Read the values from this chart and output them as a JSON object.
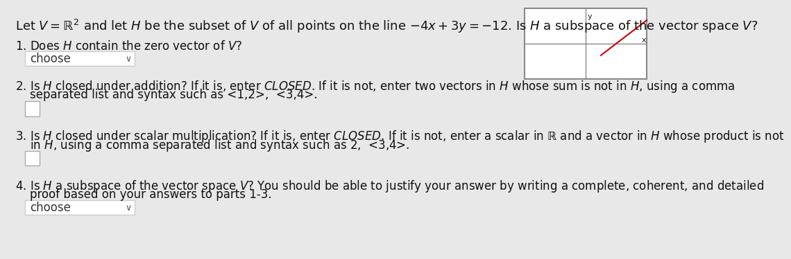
{
  "bg_color": "#e8e8e8",
  "title_text": "Let $V = \\mathbb{R}^2$ and let $H$ be the subset of $V$ of all points on the line $-4x + 3y = -12$. Is $H$ a subspace of the vector space $V$?",
  "q1_label": "1. Does $H$ contain the zero vector of $V$?",
  "q1_box_text": "choose",
  "q2_label_line1": "2. Is $H$ closed under addition? If it is, enter $\\mathit{CLOSED}$. If it is not, enter two vectors in $H$ whose sum is not in $H$, using a comma",
  "q2_label_line2": "    separated list and syntax such as <1,2>,  <3,4>.",
  "q3_label_line1": "3. Is $H$ closed under scalar multiplication? If it is, enter $\\mathit{CLOSED}$. If it is not, enter a scalar in $\\mathbb{R}$ and a vector in $H$ whose product is not",
  "q3_label_line2": "    in $H$, using a comma separated list and syntax such as 2,  <3,4>.",
  "q4_label_line1": "4. Is $H$ a subspace of the vector space $V$? You should be able to justify your answer by writing a complete, coherent, and detailed",
  "q4_label_line2": "    proof based on your answers to parts 1-3.",
  "q4_box_text": "choose",
  "graph_bg": "#ffffff",
  "graph_line_color": "#cc0000",
  "graph_grid_color": "#888888",
  "font_size_title": 13,
  "font_size_body": 12,
  "choose_box_color": "#ffffff",
  "choose_box_border": "#cccccc",
  "input_box_color": "#ffffff",
  "input_box_border": "#aaaaaa"
}
